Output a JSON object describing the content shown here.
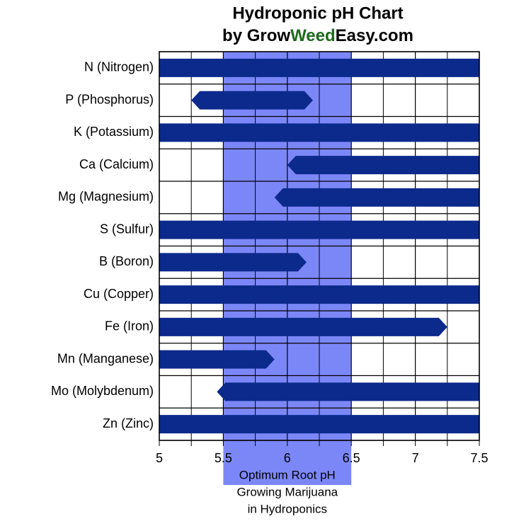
{
  "chart_data": {
    "type": "range-bar",
    "title": "Hydroponic pH Chart",
    "subtitle": [
      {
        "text": "by Grow"
      },
      {
        "text": "Weed",
        "color": "#1d6b1d"
      },
      {
        "text": "Easy.com"
      }
    ],
    "categories": [
      "N (Nitrogen)",
      "P (Phosphorus)",
      "K (Potassium)",
      "Ca (Calcium)",
      "Mg (Magnesium)",
      "S (Sulfur)",
      "B (Boron)",
      "Cu (Copper)",
      "Fe (Iron)",
      "Mn (Manganese)",
      "Mo (Molybdenum)",
      "Zn (Zinc)"
    ],
    "starts": [
      5,
      5.25,
      5,
      6,
      5.9,
      5,
      5,
      5,
      5,
      5,
      5.45,
      5
    ],
    "ends": [
      7.5,
      6.2,
      7.5,
      7.5,
      7.5,
      7.5,
      6.15,
      7.5,
      7.25,
      5.9,
      7.5,
      7.5
    ],
    "color": "#0c2a8c",
    "xlim": [
      5,
      7.5
    ],
    "xticks": [
      5,
      5.5,
      6,
      6.5,
      7,
      7.5
    ],
    "minor_xticks": [
      5.25,
      5.75,
      6.25,
      6.75,
      7.25
    ],
    "grid": true,
    "optimum": {
      "range": [
        5.5,
        6.5
      ],
      "color": "#7c87f7",
      "labels": [
        "Optimum Root pH",
        "Growing Marijuana",
        "in Hydroponics"
      ]
    }
  }
}
